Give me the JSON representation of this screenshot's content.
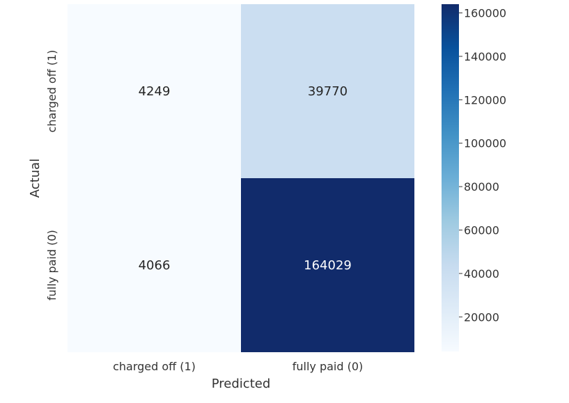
{
  "chart_data": {
    "type": "heatmap",
    "title": "",
    "xlabel": "Predicted",
    "ylabel": "Actual",
    "x_categories": [
      "charged off (1)",
      "fully paid (0)"
    ],
    "y_categories": [
      "charged off (1)",
      "fully paid (0)"
    ],
    "values": [
      [
        4249,
        39770
      ],
      [
        4066,
        164029
      ]
    ],
    "colormap": "Blues",
    "colorbar": {
      "vmin": 4066,
      "vmax": 164029,
      "ticks": [
        20000,
        40000,
        60000,
        80000,
        100000,
        120000,
        140000,
        160000
      ]
    },
    "colors": {
      "low": "#f7fbff",
      "high": "#112b6b",
      "text_dark": "#262626",
      "text_light": "#ffffff"
    }
  }
}
